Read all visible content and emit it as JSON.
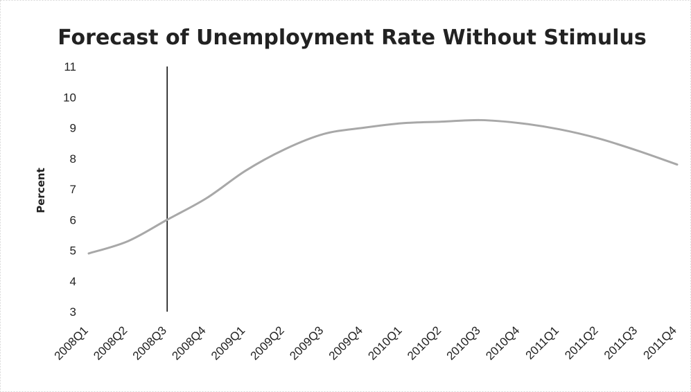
{
  "chart_data": {
    "type": "line",
    "title": "Forecast of Unemployment Rate Without Stimulus",
    "xlabel": "",
    "ylabel": "Percent",
    "categories": [
      "2008Q1",
      "2008Q2",
      "2008Q3",
      "2008Q4",
      "2009Q1",
      "2009Q2",
      "2009Q3",
      "2009Q4",
      "2010Q1",
      "2010Q2",
      "2010Q3",
      "2010Q4",
      "2011Q1",
      "2011Q2",
      "2011Q3",
      "2011Q4"
    ],
    "series": [
      {
        "values": [
          4.9,
          5.3,
          6.0,
          6.7,
          7.6,
          8.3,
          8.8,
          9.0,
          9.15,
          9.2,
          9.25,
          9.15,
          8.95,
          8.65,
          8.25,
          7.8
        ],
        "color": "#a8a8a8"
      }
    ],
    "yticks": [
      3,
      4,
      5,
      6,
      7,
      8,
      9,
      10,
      11
    ],
    "ylim": [
      3,
      11
    ],
    "grid": false,
    "legend": "none",
    "marker_line": {
      "at_category": "2008Q3",
      "color": "#111111"
    }
  }
}
